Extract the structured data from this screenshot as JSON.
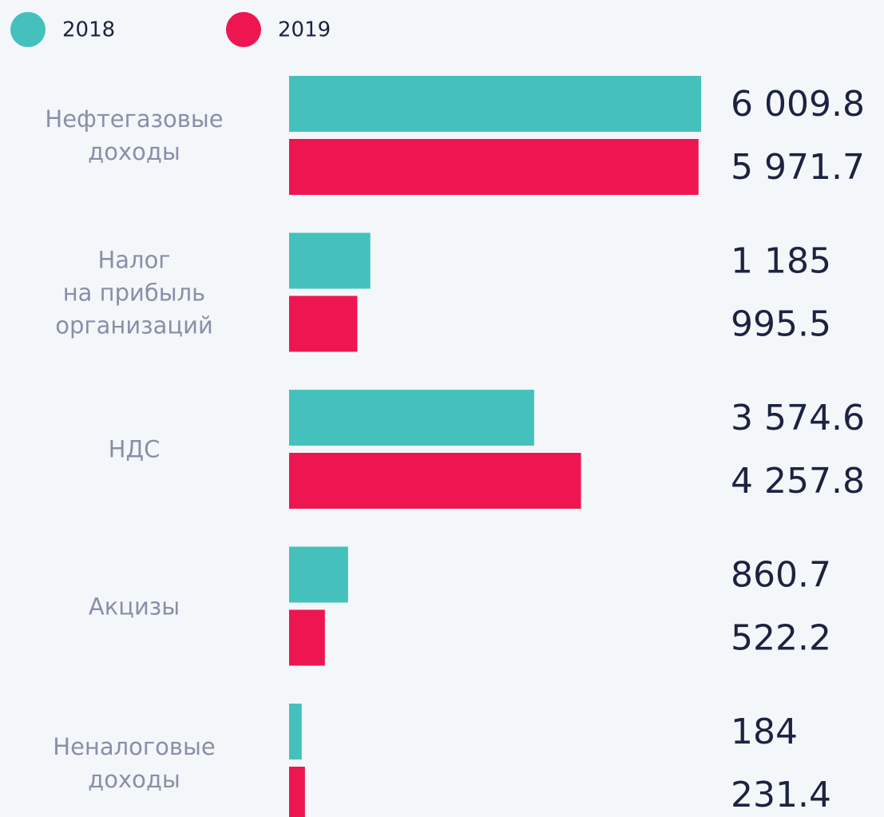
{
  "chart_data": {
    "type": "bar",
    "categories": [
      "Нефтегазовые\nдоходы",
      "Налог\nна прибыль\nорганизаций",
      "НДС",
      "Акцизы",
      "Неналоговые\nдоходы"
    ],
    "series": [
      {
        "name": "2018",
        "color": "#44c1bd",
        "values": [
          6009.8,
          1185,
          3574.6,
          860.7,
          184
        ],
        "value_labels": [
          "6 009.8",
          "1 185",
          "3 574.6",
          "860.7",
          "184"
        ]
      },
      {
        "name": "2019",
        "color": "#ee1651",
        "values": [
          5971.7,
          995.5,
          4257.8,
          522.2,
          231.4
        ],
        "value_labels": [
          "5 971.7",
          "995.5",
          "4 257.8",
          "522.2",
          "231.4"
        ]
      }
    ]
  }
}
